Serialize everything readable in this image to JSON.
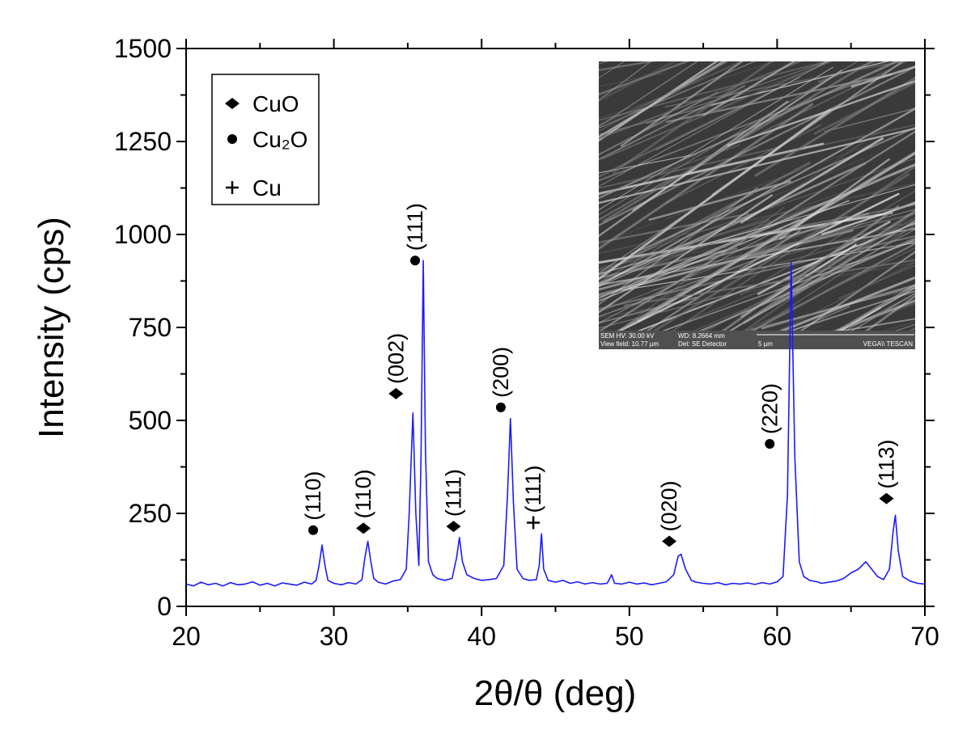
{
  "chart_data": {
    "type": "line",
    "xlabel": "2θ/θ (deg)",
    "ylabel": "Intensity (cps)",
    "xlim": [
      20,
      70
    ],
    "xticks": [
      20,
      30,
      40,
      50,
      60,
      70
    ],
    "xminorticks": [
      25,
      35,
      45,
      55,
      65
    ],
    "ylim": [
      0,
      1500
    ],
    "yticks": [
      0,
      250,
      500,
      750,
      1000,
      1250,
      1500
    ],
    "yminorticks": [
      125,
      375,
      625,
      875,
      1125,
      1375
    ],
    "series": [
      {
        "color": "#1a1aff",
        "x": [
          20,
          20.5,
          21,
          21.5,
          22,
          22.5,
          23,
          23.5,
          24,
          24.5,
          25,
          25.5,
          26,
          26.5,
          27,
          27.5,
          28,
          28.5,
          28.8,
          29.0,
          29.2,
          29.4,
          29.6,
          30,
          30.5,
          31,
          31.5,
          31.9,
          32.1,
          32.3,
          32.5,
          32.7,
          33,
          33.5,
          34,
          34.5,
          34.9,
          35.1,
          35.35,
          35.55,
          35.75,
          35.9,
          36.05,
          36.2,
          36.4,
          36.7,
          37,
          37.5,
          38,
          38.3,
          38.5,
          38.7,
          39,
          39.5,
          40,
          40.5,
          41,
          41.5,
          41.75,
          41.95,
          42.15,
          42.4,
          42.8,
          43.2,
          43.7,
          43.9,
          44.05,
          44.2,
          44.5,
          45,
          45.5,
          46,
          46.5,
          47,
          47.5,
          48,
          48.5,
          48.8,
          49,
          49.5,
          50,
          50.5,
          51,
          51.5,
          52,
          52.5,
          53,
          53.3,
          53.5,
          53.8,
          54.2,
          54.5,
          55,
          55.5,
          56,
          56.5,
          57,
          57.5,
          58,
          58.5,
          59,
          59.5,
          60,
          60.4,
          60.7,
          60.95,
          61.2,
          61.5,
          61.8,
          62.2,
          62.7,
          63,
          63.5,
          64,
          64.5,
          65,
          65.5,
          66,
          66.4,
          66.8,
          67.2,
          67.6,
          67.85,
          68.0,
          68.2,
          68.5,
          69,
          69.5,
          70
        ],
        "values": [
          60,
          55,
          65,
          58,
          62,
          55,
          64,
          58,
          60,
          66,
          57,
          62,
          55,
          63,
          60,
          57,
          65,
          60,
          70,
          110,
          165,
          110,
          70,
          62,
          58,
          64,
          60,
          72,
          130,
          175,
          120,
          75,
          65,
          60,
          68,
          72,
          100,
          250,
          520,
          250,
          110,
          400,
          930,
          420,
          120,
          85,
          75,
          70,
          75,
          130,
          185,
          120,
          85,
          75,
          70,
          72,
          75,
          110,
          300,
          505,
          280,
          100,
          75,
          70,
          72,
          110,
          195,
          100,
          70,
          65,
          70,
          62,
          66,
          60,
          64,
          60,
          62,
          85,
          62,
          60,
          65,
          60,
          63,
          58,
          62,
          66,
          85,
          135,
          140,
          100,
          70,
          65,
          62,
          60,
          64,
          58,
          62,
          60,
          63,
          59,
          64,
          60,
          66,
          80,
          300,
          925,
          400,
          120,
          80,
          70,
          66,
          62,
          65,
          68,
          75,
          90,
          100,
          120,
          100,
          80,
          72,
          100,
          200,
          245,
          150,
          80,
          68,
          62,
          60
        ]
      }
    ],
    "annotations": [
      {
        "text": "(110)",
        "marker": "circle",
        "x": 28.6,
        "y": 205
      },
      {
        "text": "(110)",
        "marker": "diamond",
        "x": 32.0,
        "y": 210
      },
      {
        "text": "(002)",
        "marker": "diamond",
        "x": 34.2,
        "y": 572
      },
      {
        "text": "(111)",
        "marker": "circle",
        "x": 35.5,
        "y": 930
      },
      {
        "text": "(111)",
        "marker": "diamond",
        "x": 38.1,
        "y": 215
      },
      {
        "text": "(200)",
        "marker": "circle",
        "x": 41.3,
        "y": 535
      },
      {
        "text": "(111)",
        "marker": "plus",
        "x": 43.5,
        "y": 225
      },
      {
        "text": "(020)",
        "marker": "diamond",
        "x": 52.7,
        "y": 175
      },
      {
        "text": "(220)",
        "marker": "circle",
        "x": 59.5,
        "y": 437
      },
      {
        "text": "(113)",
        "marker": "diamond",
        "x": 67.4,
        "y": 290
      }
    ],
    "legend": [
      {
        "label": "CuO",
        "marker": "diamond"
      },
      {
        "label": "Cu₂O",
        "marker": "circle"
      },
      {
        "label": "Cu",
        "marker": "plus"
      }
    ],
    "inset": {
      "caption": [
        "SEM HV: 30.00 kV",
        "WD: 8.2664 mm",
        "View field: 10.77 µm",
        "Det: SE Detector",
        "5 µm",
        "VEGA\\\\ TESCAN"
      ]
    }
  }
}
